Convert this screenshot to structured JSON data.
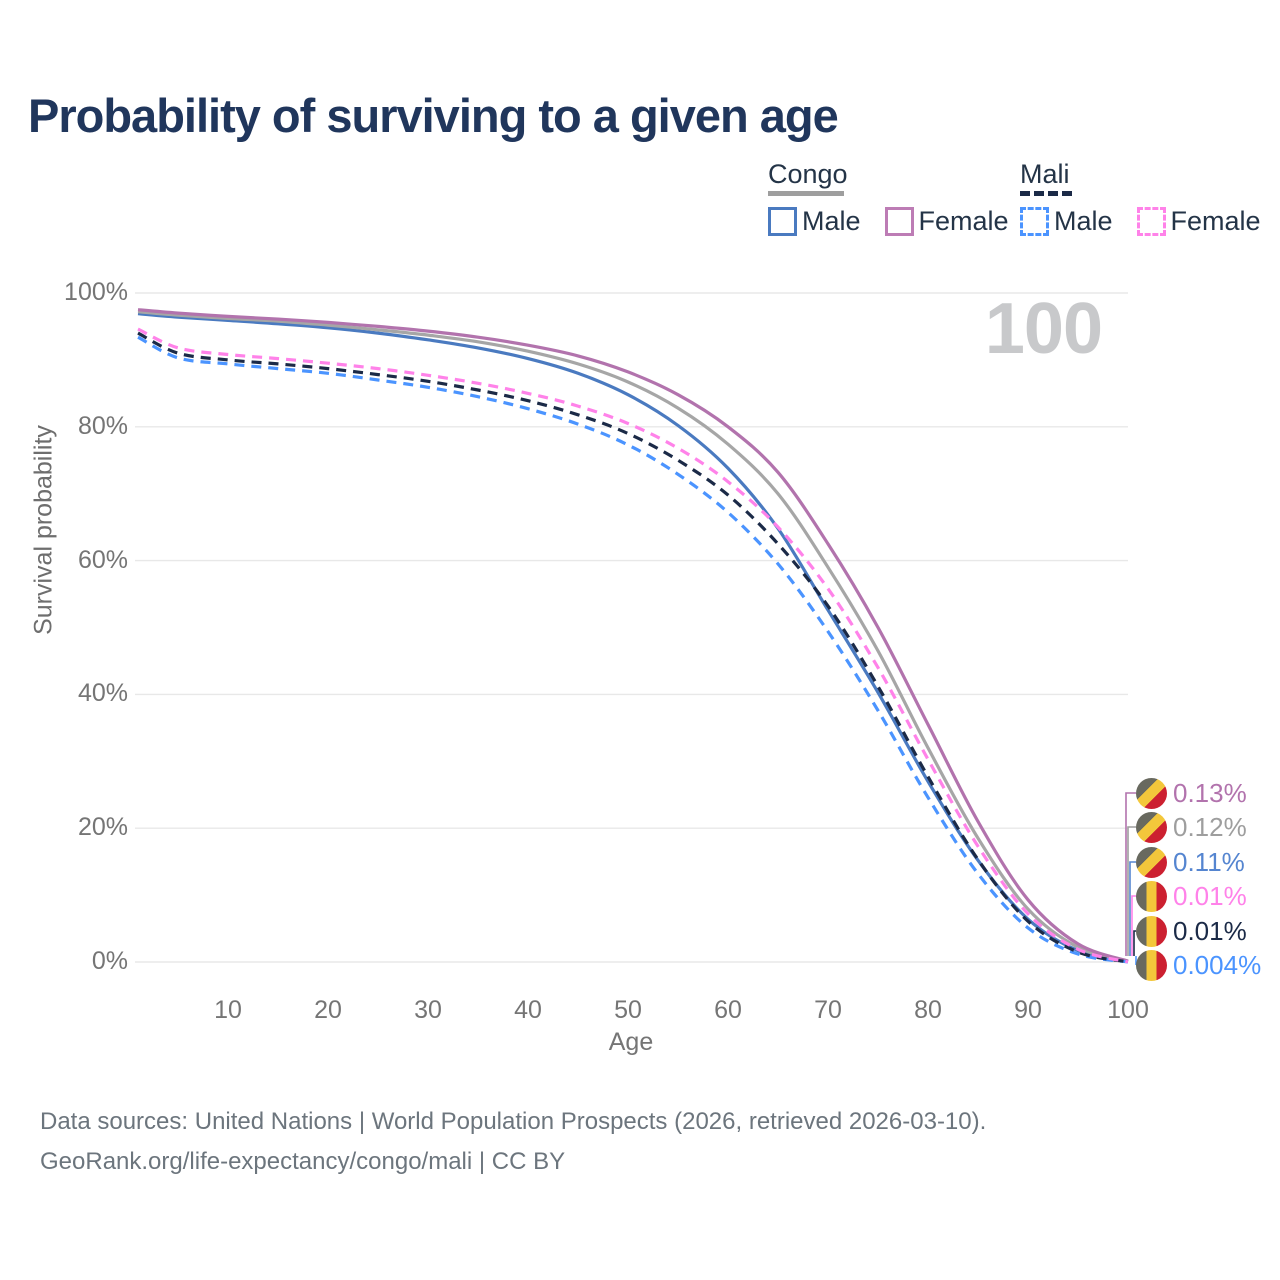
{
  "title": "Probability of surviving to a given age",
  "age_counter": "100",
  "legend": {
    "groups": [
      {
        "name": "Congo",
        "line_style": "solid",
        "underline_color": "#9e9e9e",
        "items": [
          {
            "label": "Male",
            "color": "#4a7ac0"
          },
          {
            "label": "Female",
            "color": "#bd7cb5"
          }
        ]
      },
      {
        "name": "Mali",
        "line_style": "dashed",
        "underline_color": "#1b2a47",
        "items": [
          {
            "label": "Male",
            "color": "#4b94ff"
          },
          {
            "label": "Female",
            "color": "#ff82e9"
          }
        ]
      }
    ]
  },
  "chart_data": {
    "type": "line",
    "title": "Probability of surviving to a given age",
    "xlabel": "Age",
    "ylabel": "Survival probability",
    "xlim": [
      1,
      100
    ],
    "ylim": [
      0,
      100
    ],
    "grid": "horizontal",
    "legend_position": "top-right",
    "current_age_marker": "100",
    "xticks": [
      "10",
      "20",
      "30",
      "40",
      "50",
      "60",
      "70",
      "80",
      "90",
      "100"
    ],
    "yticks": [
      "100%",
      "80%",
      "60%",
      "40%",
      "20%",
      "0%"
    ],
    "ages": [
      1,
      5,
      10,
      15,
      20,
      25,
      30,
      35,
      40,
      45,
      50,
      55,
      60,
      65,
      70,
      75,
      80,
      85,
      90,
      95,
      100
    ],
    "series": [
      {
        "name": "Congo Male",
        "country": "Congo",
        "sex": "Male",
        "style": "solid",
        "color": "#4a7ac0",
        "end_label": "0.11%",
        "values": [
          96.9,
          96.4,
          95.9,
          95.4,
          94.8,
          94.0,
          93.0,
          91.8,
          90.2,
          88.0,
          84.8,
          80.2,
          73.8,
          64.8,
          52.6,
          40.3,
          27.0,
          15.2,
          6.4,
          1.7,
          0.11
        ]
      },
      {
        "name": "Congo",
        "country": "Congo",
        "sex": "Both",
        "style": "solid",
        "color": "#a6a6a6",
        "end_label": "0.12%",
        "values": [
          97.2,
          96.7,
          96.2,
          95.8,
          95.2,
          94.5,
          93.7,
          92.7,
          91.3,
          89.4,
          86.7,
          82.8,
          77.4,
          70.0,
          59.0,
          46.5,
          32.0,
          18.5,
          7.9,
          2.2,
          0.12
        ]
      },
      {
        "name": "Congo Female",
        "country": "Congo",
        "sex": "Female",
        "style": "solid",
        "color": "#b273ad",
        "end_label": "0.13%",
        "values": [
          97.5,
          97.0,
          96.5,
          96.1,
          95.6,
          95.0,
          94.3,
          93.4,
          92.2,
          90.6,
          88.2,
          84.8,
          80.0,
          73.2,
          62.5,
          50.0,
          35.5,
          21.0,
          9.3,
          2.7,
          0.13
        ]
      },
      {
        "name": "Mali Male",
        "country": "Mali",
        "sex": "Male",
        "style": "dashed",
        "color": "#4b94ff",
        "end_label": "0.004%",
        "values": [
          93.4,
          90.3,
          89.4,
          88.7,
          88.0,
          87.0,
          85.9,
          84.5,
          82.7,
          80.4,
          77.3,
          72.9,
          67.2,
          59.5,
          49.4,
          37.6,
          24.6,
          13.2,
          5.1,
          1.2,
          0.004
        ]
      },
      {
        "name": "Mali",
        "country": "Mali",
        "sex": "Both",
        "style": "dashed",
        "color": "#1b2a47",
        "end_label": "0.01%",
        "values": [
          94.0,
          91.0,
          90.0,
          89.4,
          88.7,
          87.8,
          86.8,
          85.5,
          83.9,
          81.8,
          79.0,
          75.0,
          69.8,
          62.5,
          53.2,
          41.2,
          27.7,
          15.3,
          6.1,
          1.5,
          0.01
        ]
      },
      {
        "name": "Mali Female",
        "country": "Mali",
        "sex": "Female",
        "style": "dashed",
        "color": "#ff82e9",
        "end_label": "0.01%",
        "values": [
          94.6,
          91.8,
          90.8,
          90.2,
          89.5,
          88.7,
          87.7,
          86.5,
          85.0,
          83.1,
          80.5,
          76.8,
          71.8,
          65.0,
          55.8,
          44.0,
          30.3,
          17.3,
          7.2,
          1.9,
          0.01
        ]
      }
    ]
  },
  "end_labels": [
    {
      "series": "Congo Female",
      "text": "0.13%",
      "color": "#b273ad",
      "flag": "congo"
    },
    {
      "series": "Congo",
      "text": "0.12%",
      "color": "#9e9e9e",
      "flag": "congo"
    },
    {
      "series": "Congo Male",
      "text": "0.11%",
      "color": "#5585d0",
      "flag": "congo"
    },
    {
      "series": "Mali Female",
      "text": "0.01%",
      "color": "#ff82e9",
      "flag": "mali"
    },
    {
      "series": "Mali",
      "text": "0.01%",
      "color": "#1b2a47",
      "flag": "mali"
    },
    {
      "series": "Mali Male",
      "text": "0.004%",
      "color": "#4b94ff",
      "flag": "mali"
    }
  ],
  "flag_colors": {
    "green_muted": "#68695f",
    "yellow": "#f3c73b",
    "red": "#cc2030"
  },
  "footer": {
    "line1": "Data sources: United Nations | World Population Prospects (2026, retrieved 2026-03-10).",
    "line2": "GeoRank.org/life-expectancy/congo/mali | CC BY"
  }
}
